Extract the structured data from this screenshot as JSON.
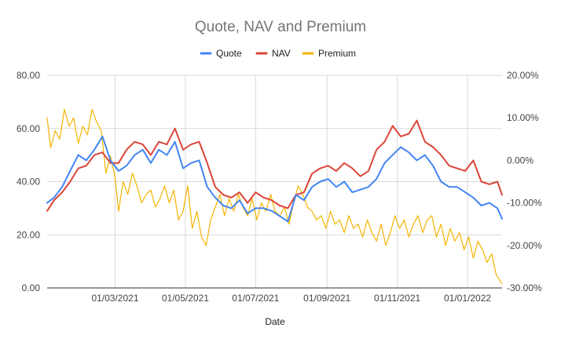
{
  "chart_data": {
    "type": "line",
    "title": "Quote, NAV and Premium",
    "xlabel": "Date",
    "ylabel": "",
    "ylim": [
      0,
      80
    ],
    "y2lim": [
      -30,
      20
    ],
    "y_ticks": [
      "0.00",
      "20.00",
      "40.00",
      "60.00",
      "80.00"
    ],
    "y2_ticks": [
      "-30.00%",
      "-20.00%",
      "-10.00%",
      "0.00%",
      "10.00%",
      "20.00%"
    ],
    "x_range": [
      "2021-01-01",
      "2022-01-31"
    ],
    "x_ticks": [
      {
        "date": "2021-03-01",
        "label": "01/03/2021"
      },
      {
        "date": "2021-05-01",
        "label": "01/05/2021"
      },
      {
        "date": "2021-07-01",
        "label": "01/07/2021"
      },
      {
        "date": "2021-09-01",
        "label": "01/09/2021"
      },
      {
        "date": "2021-11-01",
        "label": "01/11/2021"
      },
      {
        "date": "2022-01-01",
        "label": "01/01/2022"
      }
    ],
    "legend_position": "top",
    "grid": true,
    "series": [
      {
        "name": "Quote",
        "axis": "left",
        "color": "#4285f4",
        "points": [
          [
            "2021-01-01",
            32
          ],
          [
            "2021-01-07",
            34
          ],
          [
            "2021-01-14",
            38
          ],
          [
            "2021-01-21",
            44
          ],
          [
            "2021-01-28",
            50
          ],
          [
            "2021-02-04",
            48
          ],
          [
            "2021-02-11",
            52
          ],
          [
            "2021-02-18",
            57
          ],
          [
            "2021-02-25",
            48
          ],
          [
            "2021-03-04",
            44
          ],
          [
            "2021-03-11",
            46
          ],
          [
            "2021-03-18",
            50
          ],
          [
            "2021-03-25",
            52
          ],
          [
            "2021-04-01",
            47
          ],
          [
            "2021-04-08",
            52
          ],
          [
            "2021-04-15",
            50
          ],
          [
            "2021-04-22",
            55
          ],
          [
            "2021-04-29",
            45
          ],
          [
            "2021-05-06",
            47
          ],
          [
            "2021-05-13",
            48
          ],
          [
            "2021-05-20",
            38
          ],
          [
            "2021-05-27",
            34
          ],
          [
            "2021-06-03",
            31
          ],
          [
            "2021-06-10",
            30
          ],
          [
            "2021-06-17",
            33
          ],
          [
            "2021-06-24",
            28
          ],
          [
            "2021-07-01",
            30
          ],
          [
            "2021-07-08",
            30
          ],
          [
            "2021-07-15",
            29
          ],
          [
            "2021-07-22",
            27
          ],
          [
            "2021-07-29",
            25
          ],
          [
            "2021-08-05",
            35
          ],
          [
            "2021-08-12",
            33
          ],
          [
            "2021-08-19",
            38
          ],
          [
            "2021-08-26",
            40
          ],
          [
            "2021-09-02",
            41
          ],
          [
            "2021-09-09",
            38
          ],
          [
            "2021-09-16",
            40
          ],
          [
            "2021-09-23",
            36
          ],
          [
            "2021-09-30",
            37
          ],
          [
            "2021-10-07",
            38
          ],
          [
            "2021-10-14",
            41
          ],
          [
            "2021-10-21",
            47
          ],
          [
            "2021-10-28",
            50
          ],
          [
            "2021-11-04",
            53
          ],
          [
            "2021-11-11",
            51
          ],
          [
            "2021-11-18",
            48
          ],
          [
            "2021-11-25",
            50
          ],
          [
            "2021-12-02",
            46
          ],
          [
            "2021-12-09",
            40
          ],
          [
            "2021-12-16",
            38
          ],
          [
            "2021-12-23",
            38
          ],
          [
            "2021-12-30",
            36
          ],
          [
            "2022-01-06",
            34
          ],
          [
            "2022-01-13",
            31
          ],
          [
            "2022-01-20",
            32
          ],
          [
            "2022-01-27",
            30
          ],
          [
            "2022-01-31",
            26
          ]
        ]
      },
      {
        "name": "NAV",
        "axis": "left",
        "color": "#db4437",
        "points": [
          [
            "2021-01-01",
            29
          ],
          [
            "2021-01-07",
            33
          ],
          [
            "2021-01-14",
            36
          ],
          [
            "2021-01-21",
            40
          ],
          [
            "2021-01-28",
            45
          ],
          [
            "2021-02-04",
            46
          ],
          [
            "2021-02-11",
            50
          ],
          [
            "2021-02-18",
            51
          ],
          [
            "2021-02-25",
            47
          ],
          [
            "2021-03-04",
            47
          ],
          [
            "2021-03-11",
            52
          ],
          [
            "2021-03-18",
            55
          ],
          [
            "2021-03-25",
            54
          ],
          [
            "2021-04-01",
            50
          ],
          [
            "2021-04-08",
            55
          ],
          [
            "2021-04-15",
            54
          ],
          [
            "2021-04-22",
            60
          ],
          [
            "2021-04-29",
            52
          ],
          [
            "2021-05-06",
            54
          ],
          [
            "2021-05-13",
            55
          ],
          [
            "2021-05-20",
            47
          ],
          [
            "2021-05-27",
            38
          ],
          [
            "2021-06-03",
            35
          ],
          [
            "2021-06-10",
            34
          ],
          [
            "2021-06-17",
            36
          ],
          [
            "2021-06-24",
            32
          ],
          [
            "2021-07-01",
            36
          ],
          [
            "2021-07-08",
            34
          ],
          [
            "2021-07-15",
            33
          ],
          [
            "2021-07-22",
            31
          ],
          [
            "2021-07-29",
            30
          ],
          [
            "2021-08-05",
            35
          ],
          [
            "2021-08-12",
            36
          ],
          [
            "2021-08-19",
            43
          ],
          [
            "2021-08-26",
            45
          ],
          [
            "2021-09-02",
            46
          ],
          [
            "2021-09-09",
            44
          ],
          [
            "2021-09-16",
            47
          ],
          [
            "2021-09-23",
            45
          ],
          [
            "2021-09-30",
            42
          ],
          [
            "2021-10-07",
            44
          ],
          [
            "2021-10-14",
            52
          ],
          [
            "2021-10-21",
            55
          ],
          [
            "2021-10-28",
            61
          ],
          [
            "2021-11-04",
            57
          ],
          [
            "2021-11-11",
            58
          ],
          [
            "2021-11-18",
            63
          ],
          [
            "2021-11-25",
            55
          ],
          [
            "2021-12-02",
            53
          ],
          [
            "2021-12-09",
            50
          ],
          [
            "2021-12-16",
            46
          ],
          [
            "2021-12-23",
            45
          ],
          [
            "2021-12-30",
            44
          ],
          [
            "2022-01-06",
            48
          ],
          [
            "2022-01-13",
            40
          ],
          [
            "2022-01-20",
            39
          ],
          [
            "2022-01-27",
            40
          ],
          [
            "2022-01-31",
            35
          ]
        ]
      },
      {
        "name": "Premium",
        "axis": "right",
        "color": "#f4b400",
        "points": [
          [
            "2021-01-01",
            10
          ],
          [
            "2021-01-04",
            3
          ],
          [
            "2021-01-08",
            7
          ],
          [
            "2021-01-12",
            5
          ],
          [
            "2021-01-16",
            12
          ],
          [
            "2021-01-20",
            8
          ],
          [
            "2021-01-24",
            10
          ],
          [
            "2021-01-28",
            4
          ],
          [
            "2021-02-01",
            8
          ],
          [
            "2021-02-05",
            6
          ],
          [
            "2021-02-09",
            12
          ],
          [
            "2021-02-13",
            9
          ],
          [
            "2021-02-17",
            7
          ],
          [
            "2021-02-21",
            -3
          ],
          [
            "2021-02-25",
            1
          ],
          [
            "2021-03-01",
            -4
          ],
          [
            "2021-03-04",
            -12
          ],
          [
            "2021-03-08",
            -5
          ],
          [
            "2021-03-12",
            -8
          ],
          [
            "2021-03-16",
            -3
          ],
          [
            "2021-03-20",
            -6
          ],
          [
            "2021-03-24",
            -10
          ],
          [
            "2021-03-28",
            -8
          ],
          [
            "2021-04-01",
            -7
          ],
          [
            "2021-04-05",
            -11
          ],
          [
            "2021-04-09",
            -9
          ],
          [
            "2021-04-13",
            -6
          ],
          [
            "2021-04-17",
            -10
          ],
          [
            "2021-04-21",
            -7
          ],
          [
            "2021-04-25",
            -14
          ],
          [
            "2021-04-29",
            -12
          ],
          [
            "2021-05-03",
            -6
          ],
          [
            "2021-05-07",
            -16
          ],
          [
            "2021-05-11",
            -12
          ],
          [
            "2021-05-15",
            -18
          ],
          [
            "2021-05-19",
            -20
          ],
          [
            "2021-05-23",
            -14
          ],
          [
            "2021-05-27",
            -11
          ],
          [
            "2021-05-31",
            -8
          ],
          [
            "2021-06-04",
            -13
          ],
          [
            "2021-06-08",
            -9
          ],
          [
            "2021-06-12",
            -12
          ],
          [
            "2021-06-16",
            -8
          ],
          [
            "2021-06-20",
            -11
          ],
          [
            "2021-06-24",
            -13
          ],
          [
            "2021-06-28",
            -9
          ],
          [
            "2021-07-02",
            -14
          ],
          [
            "2021-07-06",
            -10
          ],
          [
            "2021-07-10",
            -12
          ],
          [
            "2021-07-14",
            -8
          ],
          [
            "2021-07-18",
            -12
          ],
          [
            "2021-07-22",
            -13
          ],
          [
            "2021-07-26",
            -11
          ],
          [
            "2021-07-30",
            -15
          ],
          [
            "2021-08-03",
            -10
          ],
          [
            "2021-08-07",
            -6
          ],
          [
            "2021-08-11",
            -8
          ],
          [
            "2021-08-15",
            -11
          ],
          [
            "2021-08-19",
            -12
          ],
          [
            "2021-08-23",
            -14
          ],
          [
            "2021-08-27",
            -13
          ],
          [
            "2021-08-31",
            -16
          ],
          [
            "2021-09-04",
            -12
          ],
          [
            "2021-09-08",
            -15
          ],
          [
            "2021-09-12",
            -14
          ],
          [
            "2021-09-16",
            -17
          ],
          [
            "2021-09-20",
            -13
          ],
          [
            "2021-09-24",
            -16
          ],
          [
            "2021-09-28",
            -15
          ],
          [
            "2021-10-02",
            -18
          ],
          [
            "2021-10-06",
            -14
          ],
          [
            "2021-10-10",
            -17
          ],
          [
            "2021-10-14",
            -19
          ],
          [
            "2021-10-18",
            -15
          ],
          [
            "2021-10-22",
            -20
          ],
          [
            "2021-10-26",
            -17
          ],
          [
            "2021-10-30",
            -13
          ],
          [
            "2021-11-03",
            -16
          ],
          [
            "2021-11-07",
            -14
          ],
          [
            "2021-11-11",
            -18
          ],
          [
            "2021-11-15",
            -15
          ],
          [
            "2021-11-19",
            -13
          ],
          [
            "2021-11-23",
            -17
          ],
          [
            "2021-11-27",
            -14
          ],
          [
            "2021-12-01",
            -13
          ],
          [
            "2021-12-05",
            -18
          ],
          [
            "2021-12-09",
            -15
          ],
          [
            "2021-12-13",
            -20
          ],
          [
            "2021-12-17",
            -16
          ],
          [
            "2021-12-21",
            -19
          ],
          [
            "2021-12-25",
            -17
          ],
          [
            "2021-12-29",
            -21
          ],
          [
            "2022-01-02",
            -18
          ],
          [
            "2022-01-06",
            -23
          ],
          [
            "2022-01-10",
            -19
          ],
          [
            "2022-01-14",
            -21
          ],
          [
            "2022-01-18",
            -24
          ],
          [
            "2022-01-22",
            -22
          ],
          [
            "2022-01-26",
            -27
          ],
          [
            "2022-01-31",
            -29
          ]
        ]
      }
    ]
  }
}
